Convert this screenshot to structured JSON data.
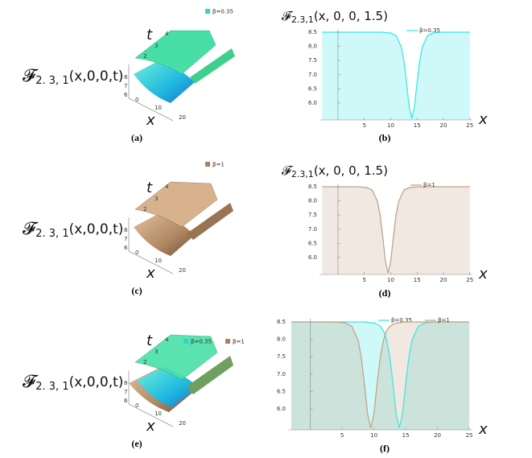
{
  "chart_data": [
    {
      "type": "surface3d",
      "label": "(a)",
      "zlabel": {
        "symbol": "𝓕",
        "subscript": "2. 3, 1",
        "args": "(x,0,0,t)"
      },
      "xlabel": "x",
      "tlabel": "t",
      "xticks": [
        0,
        10,
        20
      ],
      "tticks": [
        2,
        3,
        4
      ],
      "zticks": [
        6,
        7,
        8
      ],
      "series": [
        {
          "name": "β=0.35",
          "color": "#2fd6c8"
        }
      ]
    },
    {
      "type": "line",
      "label": "(b)",
      "title": {
        "symbol": "𝓕",
        "subscript": "2.3,1",
        "args": "(x, 0, 0, 1.5)"
      },
      "xlabel": "x",
      "x": [
        -3,
        0,
        3,
        6,
        8,
        9,
        10,
        11,
        12,
        12.5,
        13,
        13.5,
        14,
        14.5,
        15,
        15.5,
        16,
        17,
        18,
        19,
        20,
        22,
        25
      ],
      "series": [
        {
          "name": "β=0.35",
          "color": "#3ee6e6",
          "values": [
            8.5,
            8.5,
            8.5,
            8.5,
            8.5,
            8.49,
            8.47,
            8.38,
            7.98,
            7.49,
            6.72,
            5.86,
            5.45,
            5.86,
            6.72,
            7.49,
            7.98,
            8.38,
            8.47,
            8.49,
            8.5,
            8.5,
            8.5
          ]
        }
      ],
      "xlim": [
        -3.5,
        25.5
      ],
      "ylim": [
        5.4,
        8.6
      ],
      "xticks": [
        5,
        10,
        15,
        20,
        25
      ],
      "yticks": [
        {
          "value": 6,
          "label": "6.0"
        },
        6.5,
        {
          "value": 7,
          "label": "7.0"
        },
        7.5,
        {
          "value": 8,
          "label": "8.0"
        },
        8.5
      ]
    },
    {
      "type": "surface3d",
      "label": "(c)",
      "zlabel": {
        "symbol": "𝓕",
        "subscript": "2. 3, 1",
        "args": "(x,0,0,t)"
      },
      "xlabel": "x",
      "tlabel": "t",
      "xticks": [
        0,
        10,
        20
      ],
      "tticks": [
        2,
        3,
        4
      ],
      "zticks": [
        6,
        7,
        8
      ],
      "series": [
        {
          "name": "β=1",
          "color": "#a9825f"
        }
      ]
    },
    {
      "type": "line",
      "label": "(d)",
      "title": {
        "symbol": "𝓕",
        "subscript": "2.3,1",
        "args": "(x, 0, 0, 1.5)"
      },
      "xlabel": "x",
      "x": [
        -3,
        0,
        3,
        4.5,
        5.5,
        6.5,
        7.5,
        8,
        8.5,
        9,
        9.5,
        10,
        10.5,
        11,
        11.5,
        12.5,
        13.5,
        14.5,
        16,
        20,
        25
      ],
      "series": [
        {
          "name": "β=1",
          "color": "#c4a386",
          "values": [
            8.5,
            8.5,
            8.5,
            8.49,
            8.47,
            8.38,
            7.98,
            7.49,
            6.72,
            5.86,
            5.45,
            5.86,
            6.72,
            7.49,
            7.98,
            8.38,
            8.47,
            8.49,
            8.5,
            8.5,
            8.5
          ]
        }
      ],
      "xlim": [
        -3.5,
        25.5
      ],
      "ylim": [
        5.4,
        8.6
      ],
      "xticks": [
        5,
        10,
        15,
        20,
        25
      ],
      "yticks": [
        {
          "value": 6,
          "label": "6.0"
        },
        6.5,
        {
          "value": 7,
          "label": "7.0"
        },
        7.5,
        {
          "value": 8,
          "label": "8.0"
        },
        8.5
      ]
    },
    {
      "type": "surface3d",
      "label": "(e)",
      "zlabel": {
        "symbol": "𝓕",
        "subscript": "2. 3, 1",
        "args": "(x,0,0,t)"
      },
      "xlabel": "x",
      "tlabel": "t",
      "xticks": [
        0,
        10,
        20
      ],
      "tticks": [
        2,
        3,
        4
      ],
      "zticks": [
        6,
        7,
        8
      ],
      "series": [
        {
          "name": "β=0.35",
          "color": "#2fd6c8"
        },
        {
          "name": "β=1",
          "color": "#a9825f"
        }
      ]
    },
    {
      "type": "line",
      "label": "(f)",
      "xlabel": "x",
      "x": [
        -3,
        0,
        3,
        4.5,
        5.5,
        6.5,
        7.5,
        8,
        8.5,
        9,
        9.5,
        10,
        10.5,
        11,
        11.5,
        12,
        12.5,
        13,
        13.5,
        14,
        14.5,
        15,
        15.5,
        16,
        17,
        18,
        19,
        20,
        22,
        25
      ],
      "series": [
        {
          "name": "β=0.35",
          "color": "#3ee6e6",
          "values": [
            8.5,
            8.5,
            8.5,
            8.5,
            8.5,
            8.5,
            8.5,
            8.5,
            8.5,
            8.49,
            8.48,
            8.47,
            8.43,
            8.38,
            8.25,
            7.98,
            7.49,
            6.72,
            5.86,
            5.45,
            5.86,
            6.72,
            7.49,
            7.98,
            8.38,
            8.47,
            8.49,
            8.5,
            8.5,
            8.5
          ]
        },
        {
          "name": "β=1",
          "color": "#c4a386",
          "values": [
            8.5,
            8.5,
            8.5,
            8.49,
            8.47,
            8.38,
            7.98,
            7.49,
            6.72,
            5.86,
            5.45,
            5.86,
            6.72,
            7.49,
            7.98,
            8.25,
            8.38,
            8.43,
            8.47,
            8.48,
            8.49,
            8.5,
            8.5,
            8.5,
            8.5,
            8.5,
            8.5,
            8.5,
            8.5,
            8.5
          ]
        }
      ],
      "xlim": [
        -3.5,
        25.5
      ],
      "ylim": [
        5.4,
        8.6
      ],
      "xticks": [
        5,
        10,
        15,
        20,
        25
      ],
      "yticks": [
        {
          "value": 6,
          "label": "6.0"
        },
        6.5,
        {
          "value": 7,
          "label": "7.0"
        },
        7.5,
        {
          "value": 8,
          "label": "8.0"
        },
        8.5
      ]
    }
  ]
}
